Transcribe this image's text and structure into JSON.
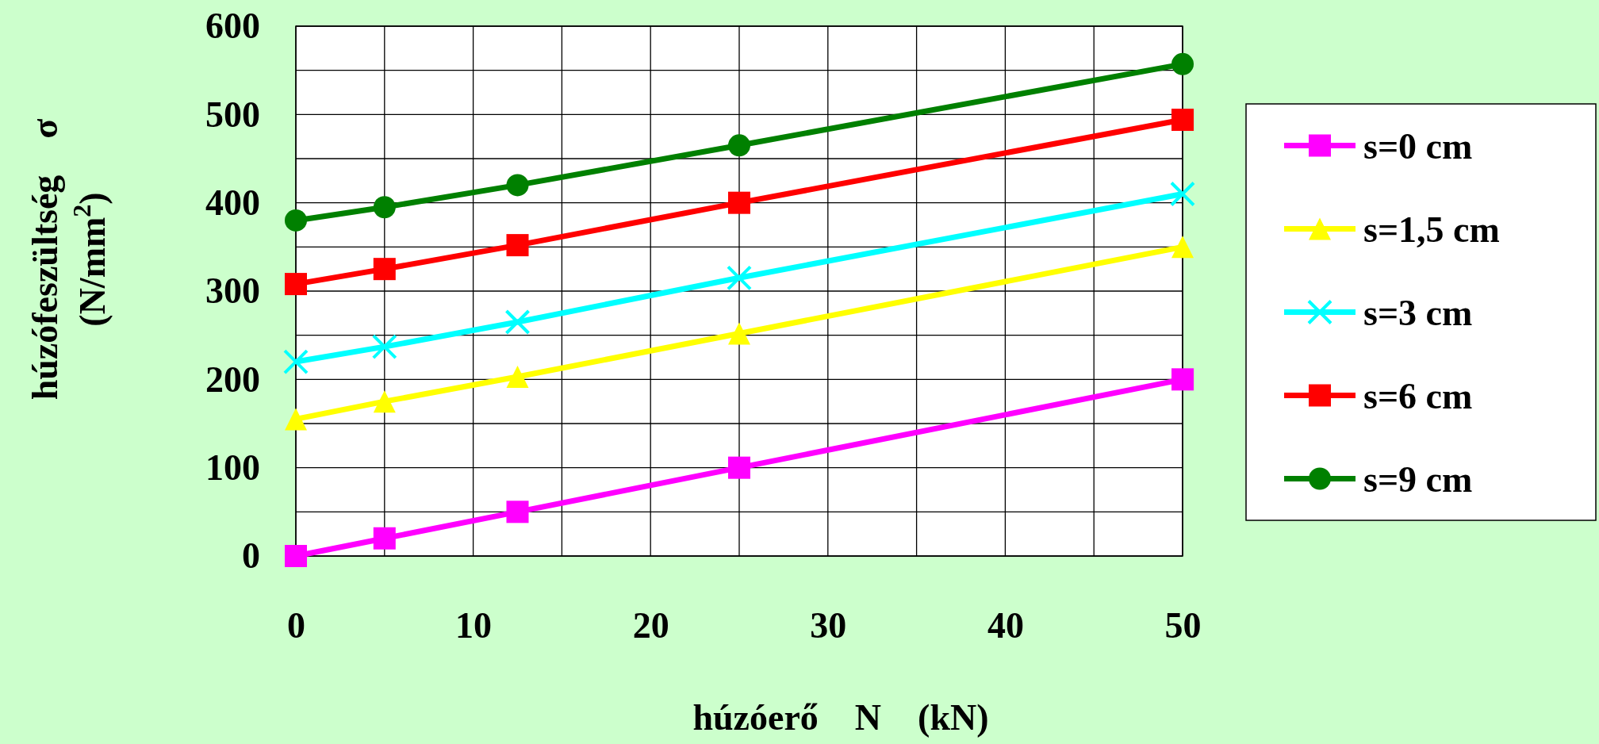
{
  "chart_data": {
    "type": "line",
    "xlabel": "húzóerő    N    (kN)",
    "ylabel": "húzófeszültség    σ\n(N/mm$^{2}$)",
    "xlim": [
      0,
      50
    ],
    "ylim": [
      0,
      600
    ],
    "xticks": [
      0,
      {
        "value": 5,
        "label": null
      },
      10,
      {
        "value": 15,
        "label": null
      },
      20,
      {
        "value": 25,
        "label": null
      },
      30,
      {
        "value": 35,
        "label": null
      },
      40,
      {
        "value": 45,
        "label": null
      },
      50
    ],
    "yticks": [
      0,
      {
        "value": 50,
        "label": null
      },
      100,
      {
        "value": 150,
        "label": null
      },
      200,
      {
        "value": 250,
        "label": null
      },
      300,
      {
        "value": 350,
        "label": null
      },
      400,
      {
        "value": 450,
        "label": null
      },
      500,
      {
        "value": 550,
        "label": null
      },
      600
    ],
    "grid": true,
    "legend": "right",
    "line_style": "solid",
    "series": [
      {
        "name": "s=0 cm",
        "color": "#ff00ff",
        "marker": "square",
        "x": [
          0,
          5,
          12.5,
          25,
          50
        ],
        "values": [
          0,
          20,
          50,
          100,
          200
        ]
      },
      {
        "name": "s=1,5 cm",
        "color": "#ffff00",
        "marker": "triangle",
        "x": [
          0,
          5,
          12.5,
          25,
          50
        ],
        "values": [
          155,
          175,
          203,
          252,
          350
        ]
      },
      {
        "name": "s=3 cm",
        "color": "#00ffff",
        "marker": "cross",
        "x": [
          0,
          5,
          12.5,
          25,
          50
        ],
        "values": [
          220,
          237,
          265,
          315,
          410
        ]
      },
      {
        "name": "s=6 cm",
        "color": "#ff0000",
        "marker": "square",
        "x": [
          0,
          5,
          12.5,
          25,
          50
        ],
        "values": [
          308,
          325,
          352,
          400,
          494
        ]
      },
      {
        "name": "s=9 cm",
        "color": "#008000",
        "marker": "circle",
        "x": [
          0,
          5,
          12.5,
          25,
          50
        ],
        "values": [
          380,
          395,
          420,
          465,
          557
        ]
      }
    ]
  }
}
